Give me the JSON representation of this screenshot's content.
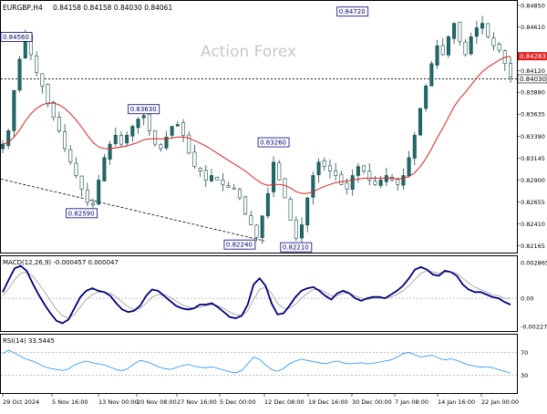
{
  "header": {
    "symbol": "EURGBP,H4",
    "ohlc": "0.84158 0.84158 0.84030 0.84061"
  },
  "watermark": "Action Forex",
  "chart_data": [
    {
      "type": "candlestick",
      "symbol": "EURGBP",
      "timeframe": "H4",
      "ylim": [
        0.8214,
        0.8487
      ],
      "y_ticks": [
        "0.84850",
        "0.84610",
        "0.84120",
        "0.83880",
        "0.83635",
        "0.83390",
        "0.83145",
        "0.82900",
        "0.82655",
        "0.82410",
        "0.82165"
      ],
      "x_ticks": [
        "29 Oct 2024",
        "5 Nov 16:00",
        "13 Nov 00:00",
        "20 Nov 08:00",
        "27 Nov 16:00",
        "5 Dec 00:00",
        "12 Dec 08:00",
        "19 Dec 16:00",
        "30 Dec 00:00",
        "7 Jan 08:00",
        "14 Jan 16:00",
        "22 Jan 00:00"
      ],
      "current_price": "0.84030",
      "ma_label": "0.84283",
      "close_series": [
        0.833,
        0.8345,
        0.839,
        0.8425,
        0.8452,
        0.843,
        0.841,
        0.8395,
        0.8375,
        0.836,
        0.8345,
        0.8325,
        0.831,
        0.8295,
        0.828,
        0.8265,
        0.8262,
        0.829,
        0.8315,
        0.833,
        0.834,
        0.833,
        0.834,
        0.835,
        0.8358,
        0.8362,
        0.8345,
        0.833,
        0.8325,
        0.8338,
        0.835,
        0.8352,
        0.834,
        0.832,
        0.8305,
        0.83,
        0.829,
        0.8295,
        0.829,
        0.8285,
        0.8282,
        0.828,
        0.827,
        0.8252,
        0.824,
        0.8226,
        0.825,
        0.8275,
        0.831,
        0.829,
        0.827,
        0.8245,
        0.8225,
        0.824,
        0.827,
        0.8295,
        0.831,
        0.8305,
        0.83,
        0.8295,
        0.8285,
        0.828,
        0.8295,
        0.8305,
        0.83,
        0.829,
        0.8285,
        0.829,
        0.8295,
        0.829,
        0.8285,
        0.8295,
        0.8315,
        0.834,
        0.837,
        0.8395,
        0.842,
        0.844,
        0.843,
        0.845,
        0.8465,
        0.8445,
        0.843,
        0.845,
        0.846,
        0.8465,
        0.845,
        0.844,
        0.8435,
        0.842,
        0.8405
      ],
      "ma_series": [
        0.833,
        0.8332,
        0.8338,
        0.8346,
        0.8356,
        0.8364,
        0.837,
        0.8374,
        0.8376,
        0.8376,
        0.8374,
        0.837,
        0.8364,
        0.8357,
        0.8349,
        0.834,
        0.8332,
        0.8327,
        0.8325,
        0.8325,
        0.8326,
        0.8327,
        0.8328,
        0.833,
        0.8332,
        0.8335,
        0.8336,
        0.8336,
        0.8336,
        0.8336,
        0.8337,
        0.8338,
        0.8338,
        0.8337,
        0.8334,
        0.8331,
        0.8328,
        0.8324,
        0.832,
        0.8316,
        0.8312,
        0.8308,
        0.8304,
        0.83,
        0.8295,
        0.829,
        0.8286,
        0.8284,
        0.8285,
        0.8285,
        0.8284,
        0.8281,
        0.8277,
        0.8275,
        0.8275,
        0.8277,
        0.828,
        0.8283,
        0.8285,
        0.8287,
        0.8288,
        0.8289,
        0.829,
        0.8291,
        0.8292,
        0.8292,
        0.8292,
        0.8292,
        0.8292,
        0.8292,
        0.8291,
        0.8292,
        0.8294,
        0.8298,
        0.8305,
        0.8314,
        0.8325,
        0.8337,
        0.8348,
        0.836,
        0.8372,
        0.8381,
        0.8388,
        0.8396,
        0.8404,
        0.8411,
        0.8416,
        0.842,
        0.8424,
        0.8427,
        0.8428
      ],
      "trendline": {
        "start": 0.8291,
        "end": 0.8222
      },
      "annotations": [
        {
          "label": "0.84560",
          "value": 0.8456
        },
        {
          "label": "0.84720",
          "value": 0.8472
        },
        {
          "label": "0.83630",
          "value": 0.8363
        },
        {
          "label": "0.83260",
          "value": 0.8326
        },
        {
          "label": "0.82590",
          "value": 0.8259
        },
        {
          "label": "0.82240",
          "value": 0.8224
        },
        {
          "label": "0.82210",
          "value": 0.8221
        }
      ]
    },
    {
      "type": "line",
      "title": "MACD(12,26,9) -0.000457 0.000047",
      "ylim": [
        -0.0024,
        0.003
      ],
      "y_ticks": [
        "0.002865",
        "0.00",
        "-0.002271"
      ],
      "series": [
        {
          "name": "MACD",
          "values": [
            0.0005,
            0.0015,
            0.0024,
            0.0026,
            0.0022,
            0.0012,
            0.0003,
            -0.0005,
            -0.0012,
            -0.0018,
            -0.002,
            -0.0017,
            -0.0008,
            0.0001,
            0.0006,
            0.0008,
            0.0006,
            0.0005,
            0.0002,
            -0.0004,
            -0.0009,
            -0.0011,
            -0.001,
            -0.0006,
            0.0002,
            0.0007,
            0.0006,
            0.0002,
            -0.0002,
            -0.0006,
            -0.0008,
            -0.0009,
            -0.0008,
            -0.0005,
            -0.0005,
            -0.0004,
            -0.0007,
            -0.0011,
            -0.0015,
            -0.0016,
            -0.0014,
            -0.0005,
            0.0011,
            0.0016,
            0.001,
            -0.0004,
            -0.0013,
            -0.0012,
            -0.0006,
            0.0001,
            0.0006,
            0.0008,
            0.0009,
            0.0006,
            0.0002,
            -0.0001,
            0.0004,
            0.0006,
            0.0004,
            0.0,
            -0.0002,
            0.0,
            0.0001,
            0.0001,
            0.0,
            0.0003,
            0.0006,
            0.001,
            0.0016,
            0.0023,
            0.0025,
            0.0023,
            0.0019,
            0.0018,
            0.0022,
            0.0021,
            0.0018,
            0.0011,
            0.0007,
            0.0005,
            0.0005,
            0.0003,
            0.0001,
            0.0,
            -0.0003,
            -0.0005
          ]
        },
        {
          "name": "Signal",
          "values": [
            0.0002,
            0.0008,
            0.0015,
            0.002,
            0.0021,
            0.0018,
            0.0012,
            0.0005,
            -0.0002,
            -0.0009,
            -0.0014,
            -0.0016,
            -0.0013,
            -0.0007,
            -0.0001,
            0.0003,
            0.0005,
            0.0005,
            0.0004,
            0.0001,
            -0.0003,
            -0.0007,
            -0.0009,
            -0.0008,
            -0.0004,
            0.0001,
            0.0003,
            0.0003,
            0.0001,
            -0.0002,
            -0.0005,
            -0.0007,
            -0.0008,
            -0.0007,
            -0.0006,
            -0.0005,
            -0.0006,
            -0.0008,
            -0.0011,
            -0.0013,
            -0.0014,
            -0.001,
            -0.0001,
            0.0007,
            0.0009,
            0.0004,
            -0.0004,
            -0.0008,
            -0.0008,
            -0.0005,
            0.0,
            0.0004,
            0.0007,
            0.0007,
            0.0005,
            0.0002,
            0.0002,
            0.0004,
            0.0004,
            0.0002,
            0.0,
            -0.0001,
            0.0,
            0.0,
            0.0,
            0.0001,
            0.0003,
            0.0006,
            0.001,
            0.0015,
            0.002,
            0.0022,
            0.0021,
            0.002,
            0.0021,
            0.0021,
            0.002,
            0.0016,
            0.0012,
            0.0009,
            0.0007,
            0.0005,
            0.0003,
            0.0002,
            0.0,
            0.0
          ]
        }
      ]
    },
    {
      "type": "line",
      "title": "RSI(14) 33.5445",
      "ylim": [
        0,
        100
      ],
      "y_ticks": [
        "70",
        "30"
      ],
      "series": [
        {
          "name": "RSI",
          "values": [
            68,
            74,
            69,
            63,
            58,
            55,
            50,
            45,
            42,
            40,
            38,
            41,
            48,
            52,
            55,
            52,
            50,
            48,
            44,
            40,
            38,
            42,
            50,
            56,
            54,
            50,
            45,
            42,
            40,
            43,
            47,
            49,
            46,
            44,
            43,
            45,
            42,
            39,
            36,
            34,
            38,
            50,
            62,
            58,
            48,
            40,
            37,
            42,
            50,
            55,
            58,
            56,
            54,
            52,
            50,
            53,
            55,
            52,
            50,
            51,
            52,
            50,
            51,
            53,
            55,
            57,
            62,
            68,
            70,
            66,
            62,
            64,
            65,
            60,
            57,
            59,
            56,
            52,
            48,
            46,
            44,
            45,
            43,
            40,
            37,
            33.5
          ]
        }
      ]
    }
  ]
}
